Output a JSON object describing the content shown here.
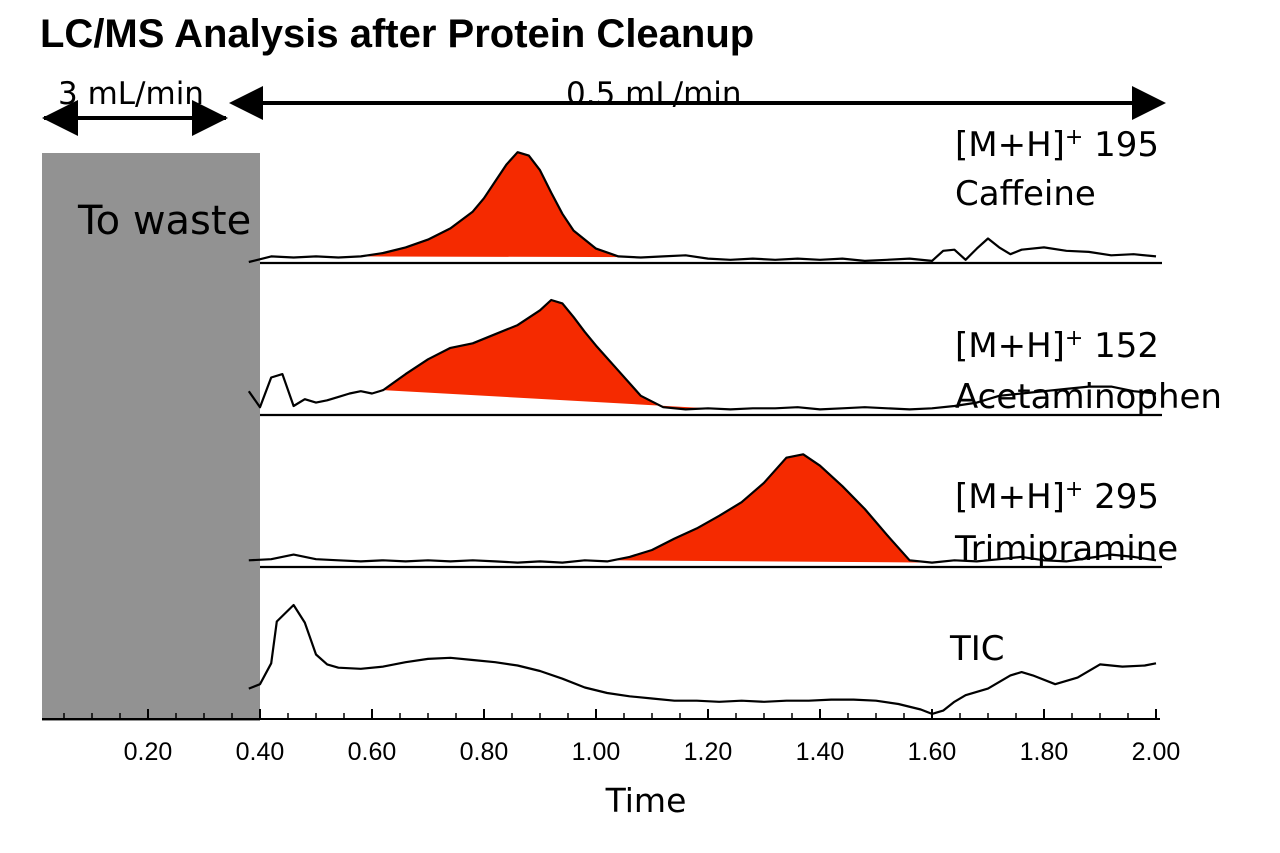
{
  "title": "LC/MS Analysis after Protein Cleanup",
  "chart_data": {
    "type": "line",
    "title": "LC/MS Analysis after Protein Cleanup",
    "xlabel": "Time",
    "ylabel": "",
    "xlim": [
      0.0,
      2.0
    ],
    "xticks": [
      "0.20",
      "0.40",
      "0.60",
      "0.80",
      "1.00",
      "1.20",
      "1.40",
      "1.60",
      "1.80",
      "2.00"
    ],
    "xtick_values": [
      0.2,
      0.4,
      0.6,
      0.8,
      1.0,
      1.2,
      1.4,
      1.6,
      1.8,
      2.0
    ],
    "grid": false,
    "annotations": {
      "waste_region": {
        "label": "To waste",
        "x_range": [
          0.0,
          0.38
        ],
        "color": "#929292"
      },
      "flow_rates": [
        {
          "label": "3 mL/min",
          "x_range": [
            0.0,
            0.38
          ]
        },
        {
          "label": "0.5 mL/min",
          "x_range": [
            0.38,
            2.0
          ]
        }
      ]
    },
    "highlight_color": "#f52a00",
    "series": [
      {
        "prefix": "[M+H]",
        "superscript": "+",
        "ion": "195",
        "compound": "Caffeine",
        "x": [
          0.38,
          0.42,
          0.46,
          0.5,
          0.54,
          0.58,
          0.62,
          0.66,
          0.7,
          0.74,
          0.78,
          0.8,
          0.82,
          0.84,
          0.86,
          0.88,
          0.9,
          0.92,
          0.94,
          0.96,
          1.0,
          1.04,
          1.08,
          1.12,
          1.16,
          1.2,
          1.24,
          1.28,
          1.32,
          1.36,
          1.4,
          1.44,
          1.48,
          1.52,
          1.56,
          1.6,
          1.62,
          1.64,
          1.66,
          1.68,
          1.7,
          1.72,
          1.74,
          1.76,
          1.8,
          1.84,
          1.88,
          1.92,
          1.96,
          2.0
        ],
        "y": [
          0.0,
          0.05,
          0.04,
          0.05,
          0.04,
          0.05,
          0.08,
          0.13,
          0.2,
          0.3,
          0.45,
          0.57,
          0.72,
          0.87,
          0.98,
          0.95,
          0.82,
          0.62,
          0.43,
          0.28,
          0.12,
          0.05,
          0.04,
          0.05,
          0.06,
          0.03,
          0.02,
          0.03,
          0.02,
          0.03,
          0.02,
          0.03,
          0.01,
          0.02,
          0.03,
          0.01,
          0.1,
          0.11,
          0.02,
          0.12,
          0.21,
          0.13,
          0.07,
          0.11,
          0.13,
          0.1,
          0.09,
          0.06,
          0.07,
          0.05
        ],
        "peak_range": [
          0.58,
          1.09
        ]
      },
      {
        "prefix": "[M+H]",
        "superscript": "+",
        "ion": "152",
        "compound": "Acetaminophen",
        "x": [
          0.38,
          0.4,
          0.42,
          0.44,
          0.46,
          0.48,
          0.5,
          0.52,
          0.54,
          0.56,
          0.58,
          0.6,
          0.62,
          0.66,
          0.7,
          0.74,
          0.78,
          0.82,
          0.86,
          0.9,
          0.92,
          0.94,
          0.96,
          0.98,
          1.0,
          1.04,
          1.08,
          1.12,
          1.16,
          1.2,
          1.24,
          1.28,
          1.32,
          1.36,
          1.4,
          1.44,
          1.48,
          1.52,
          1.56,
          1.6,
          1.64,
          1.68,
          1.72,
          1.76,
          1.8,
          1.84,
          1.88,
          1.92,
          1.96,
          2.0
        ],
        "y": [
          0.2,
          0.06,
          0.32,
          0.35,
          0.07,
          0.13,
          0.1,
          0.12,
          0.15,
          0.18,
          0.2,
          0.18,
          0.21,
          0.35,
          0.48,
          0.58,
          0.62,
          0.7,
          0.78,
          0.91,
          1.0,
          0.97,
          0.85,
          0.72,
          0.6,
          0.38,
          0.16,
          0.06,
          0.04,
          0.05,
          0.04,
          0.05,
          0.05,
          0.06,
          0.04,
          0.05,
          0.06,
          0.05,
          0.04,
          0.05,
          0.07,
          0.1,
          0.16,
          0.18,
          0.2,
          0.22,
          0.24,
          0.24,
          0.2,
          0.18
        ],
        "peak_range": [
          0.62,
          1.21
        ]
      },
      {
        "prefix": "[M+H]",
        "superscript": "+",
        "ion": "295",
        "compound": "Trimipramine",
        "x": [
          0.38,
          0.42,
          0.46,
          0.5,
          0.54,
          0.58,
          0.62,
          0.66,
          0.7,
          0.74,
          0.78,
          0.82,
          0.86,
          0.9,
          0.94,
          0.98,
          1.02,
          1.06,
          1.1,
          1.14,
          1.18,
          1.22,
          1.26,
          1.3,
          1.34,
          1.37,
          1.4,
          1.44,
          1.48,
          1.52,
          1.56,
          1.6,
          1.64,
          1.68,
          1.72,
          1.76,
          1.8,
          1.84,
          1.88,
          1.92,
          1.96,
          2.0
        ],
        "y": [
          0.05,
          0.06,
          0.1,
          0.06,
          0.05,
          0.04,
          0.05,
          0.04,
          0.05,
          0.04,
          0.05,
          0.04,
          0.03,
          0.04,
          0.03,
          0.05,
          0.04,
          0.08,
          0.14,
          0.24,
          0.33,
          0.44,
          0.56,
          0.73,
          0.95,
          0.98,
          0.88,
          0.7,
          0.5,
          0.27,
          0.05,
          0.03,
          0.05,
          0.04,
          0.06,
          0.08,
          0.05,
          0.04,
          0.07,
          0.1,
          0.08,
          0.05
        ],
        "peak_range": [
          1.03,
          1.6
        ]
      },
      {
        "name": "TIC",
        "x": [
          0.38,
          0.4,
          0.42,
          0.43,
          0.46,
          0.48,
          0.5,
          0.52,
          0.54,
          0.58,
          0.62,
          0.66,
          0.7,
          0.74,
          0.78,
          0.82,
          0.86,
          0.9,
          0.94,
          0.98,
          1.02,
          1.06,
          1.1,
          1.14,
          1.18,
          1.22,
          1.26,
          1.3,
          1.34,
          1.38,
          1.42,
          1.46,
          1.5,
          1.54,
          1.58,
          1.6,
          1.62,
          1.64,
          1.66,
          1.7,
          1.74,
          1.76,
          1.78,
          1.82,
          1.86,
          1.9,
          1.94,
          1.98,
          2.0
        ],
        "y": [
          0.24,
          0.28,
          0.47,
          0.85,
          1.0,
          0.84,
          0.55,
          0.46,
          0.43,
          0.42,
          0.44,
          0.48,
          0.51,
          0.52,
          0.5,
          0.48,
          0.45,
          0.4,
          0.33,
          0.25,
          0.2,
          0.17,
          0.15,
          0.13,
          0.13,
          0.12,
          0.13,
          0.12,
          0.13,
          0.13,
          0.14,
          0.14,
          0.13,
          0.1,
          0.05,
          0.01,
          0.04,
          0.12,
          0.18,
          0.24,
          0.36,
          0.39,
          0.36,
          0.28,
          0.34,
          0.46,
          0.44,
          0.45,
          0.47
        ]
      }
    ]
  }
}
